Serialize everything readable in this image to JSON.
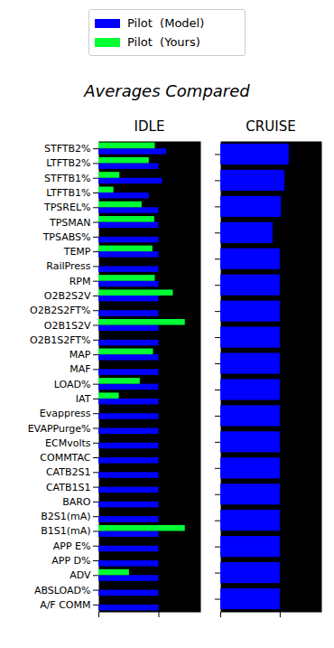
{
  "title": "Averages Compared",
  "chart_data": [
    {
      "type": "bar",
      "orientation": "horizontal",
      "title": "IDLE",
      "legend": "top",
      "tick_labels": "y",
      "categories": [
        "STFTB2%",
        "LTFTB2%",
        "STFTB1%",
        "LTFTB1%",
        "TPSREL%",
        "TPSMAN",
        "TPSABS%",
        "TEMP",
        "RailPress",
        "RPM",
        "O2B2S2V",
        "O2B2S2FT%",
        "O2B1S2V",
        "O2B1S2FT%",
        "MAP",
        "MAF",
        "LOAD%",
        "IAT",
        "Evappress",
        "EVAPPurge%",
        "ECMvolts",
        "COMMTAC",
        "CATB2S1",
        "CATB1S1",
        "BARO",
        "B2S1(mA)",
        "B1S1(mA)",
        "APP E%",
        "APP D%",
        "ADV",
        "ABSLOAD%",
        "A/F COMM"
      ],
      "series": [
        {
          "name": "Pilot  (Model)",
          "color": "#0000ff",
          "values": [
            1.13,
            1.0,
            1.06,
            0.84,
            1.0,
            1.0,
            1.0,
            1.0,
            1.0,
            1.0,
            1.0,
            1.0,
            1.0,
            1.0,
            1.0,
            1.0,
            1.0,
            1.0,
            1.0,
            1.0,
            1.0,
            1.0,
            1.0,
            1.0,
            1.0,
            1.0,
            1.0,
            1.0,
            1.0,
            1.0,
            1.0,
            1.0
          ]
        },
        {
          "name": "Pilot  (Yours)",
          "color": "#00ff33",
          "values": [
            0.94,
            0.84,
            0.35,
            0.25,
            0.72,
            0.93,
            0,
            0.9,
            0,
            0.94,
            1.24,
            0,
            1.44,
            0,
            0.91,
            0,
            0.69,
            0.34,
            0,
            0,
            0,
            0,
            0,
            0,
            0,
            0,
            1.44,
            0,
            0,
            0.51,
            0,
            0
          ]
        }
      ],
      "xlim": [
        0,
        1.7
      ],
      "xticks": [
        0,
        1
      ]
    },
    {
      "type": "bar",
      "orientation": "horizontal",
      "title": "CRUISE",
      "tick_labels": false,
      "categories": [
        null,
        null,
        null,
        null,
        null,
        null,
        null,
        null,
        null,
        null,
        null,
        null,
        null,
        null,
        null,
        null,
        null,
        null
      ],
      "series": [
        {
          "name": "Pilot  (Model)",
          "color": "#0000ff",
          "values": [
            1.15,
            1.08,
            1.02,
            0.88,
            1.0,
            1.0,
            1.0,
            1.0,
            1.0,
            1.0,
            1.0,
            1.0,
            1.0,
            1.0,
            1.0,
            1.0,
            1.0,
            1.0
          ]
        }
      ],
      "xlim": [
        0,
        1.7
      ],
      "xticks": [
        0,
        1
      ]
    }
  ]
}
